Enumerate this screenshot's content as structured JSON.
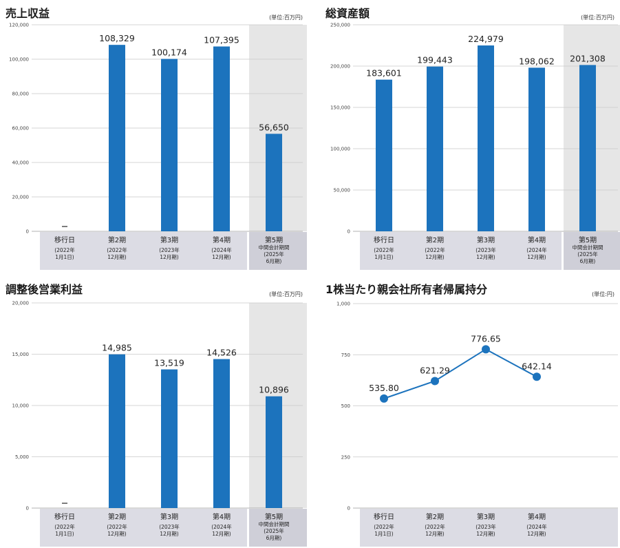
{
  "colors": {
    "bar": "#1c73bd",
    "grid": "#c8c8c8",
    "axis_band": "#dcdce4",
    "highlight_band": "#cfcfd8",
    "shade": "#e6e6e6",
    "line": "#1c73bd"
  },
  "panels": [
    {
      "title": "売上収益",
      "unit": "(単位:百万円)"
    },
    {
      "title": "総資産額",
      "unit": "(単位:百万円)"
    },
    {
      "title": "調整後営業利益",
      "unit": "(単位:百万円)"
    },
    {
      "title": "1株当たり親会社所有者帰属持分",
      "unit": "(単位:円)"
    }
  ],
  "chart_data": [
    {
      "type": "bar",
      "title": "売上収益",
      "ylim": [
        0,
        120000
      ],
      "yticks": [
        "0",
        "20,000",
        "40,000",
        "60,000",
        "80,000",
        "100,000",
        "120,000"
      ],
      "grid": true,
      "categories": [
        {
          "line1": "移行日",
          "line2": "(2022年",
          "line3": "1月1日)"
        },
        {
          "line1": "第2期",
          "line2": "(2022年",
          "line3": "12月期)"
        },
        {
          "line1": "第3期",
          "line2": "(2023年",
          "line3": "12月期)"
        },
        {
          "line1": "第4期",
          "line2": "(2024年",
          "line3": "12月期)"
        },
        {
          "line1": "第5期",
          "line1b": "中間会計期間",
          "line2": "(2025年",
          "line3": "6月期)"
        }
      ],
      "values": [
        null,
        108329,
        100174,
        107395,
        56650
      ],
      "labels": [
        "ー",
        "108,329",
        "100,174",
        "107,395",
        "56,650"
      ],
      "shaded_last": true
    },
    {
      "type": "bar",
      "title": "総資産額",
      "ylim": [
        0,
        250000
      ],
      "yticks": [
        "0",
        "50,000",
        "100,000",
        "150,000",
        "200,000",
        "250,000"
      ],
      "grid": true,
      "categories": [
        {
          "line1": "移行日",
          "line2": "(2022年",
          "line3": "1月1日)"
        },
        {
          "line1": "第2期",
          "line2": "(2022年",
          "line3": "12月期)"
        },
        {
          "line1": "第3期",
          "line2": "(2023年",
          "line3": "12月期)"
        },
        {
          "line1": "第4期",
          "line2": "(2024年",
          "line3": "12月期)"
        },
        {
          "line1": "第5期",
          "line1b": "中間会計期間",
          "line2": "(2025年",
          "line3": "6月期)"
        }
      ],
      "values": [
        183601,
        199443,
        224979,
        198062,
        201308
      ],
      "labels": [
        "183,601",
        "199,443",
        "224,979",
        "198,062",
        "201,308"
      ],
      "shaded_last": true
    },
    {
      "type": "bar",
      "title": "調整後営業利益",
      "ylim": [
        0,
        20000
      ],
      "yticks": [
        "0",
        "5,000",
        "10,000",
        "15,000",
        "20,000"
      ],
      "grid": true,
      "categories": [
        {
          "line1": "移行日",
          "line2": "(2022年",
          "line3": "1月1日)"
        },
        {
          "line1": "第2期",
          "line2": "(2022年",
          "line3": "12月期)"
        },
        {
          "line1": "第3期",
          "line2": "(2023年",
          "line3": "12月期)"
        },
        {
          "line1": "第4期",
          "line2": "(2024年",
          "line3": "12月期)"
        },
        {
          "line1": "第5期",
          "line1b": "中間会計期間",
          "line2": "(2025年",
          "line3": "6月期)"
        }
      ],
      "values": [
        null,
        14985,
        13519,
        14526,
        10896
      ],
      "labels": [
        "ー",
        "14,985",
        "13,519",
        "14,526",
        "10,896"
      ],
      "shaded_last": true
    },
    {
      "type": "line",
      "title": "1株当たり親会社所有者帰属持分",
      "ylim": [
        0,
        1000
      ],
      "yticks": [
        "0",
        "250",
        "500",
        "750",
        "1,000"
      ],
      "grid": true,
      "categories": [
        {
          "line1": "移行日",
          "line2": "(2022年",
          "line3": "1月1日)"
        },
        {
          "line1": "第2期",
          "line2": "(2022年",
          "line3": "12月期)"
        },
        {
          "line1": "第3期",
          "line2": "(2023年",
          "line3": "12月期)"
        },
        {
          "line1": "第4期",
          "line2": "(2024年",
          "line3": "12月期)"
        }
      ],
      "values": [
        535.8,
        621.29,
        776.65,
        642.14
      ],
      "labels": [
        "535.80",
        "621.29",
        "776.65",
        "642.14"
      ],
      "shaded_last": false
    }
  ]
}
